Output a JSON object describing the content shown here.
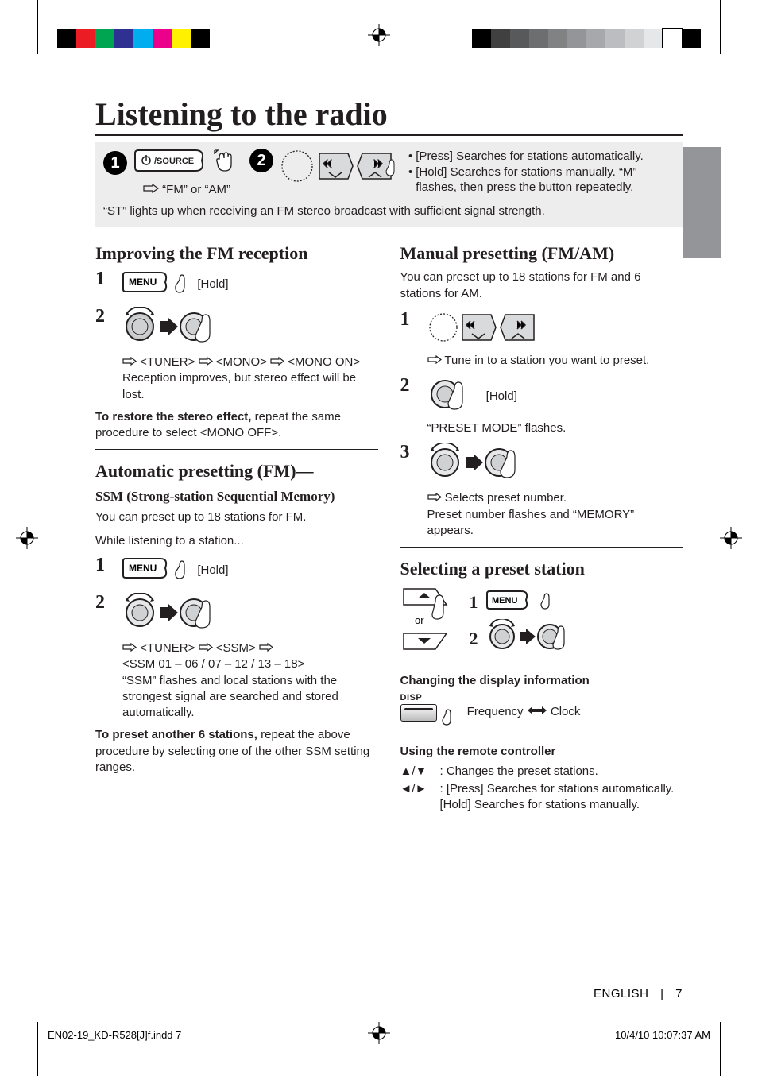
{
  "printer": {
    "left_bars": [
      "#000000",
      "#ec1c24",
      "#00a551",
      "#2e3092",
      "#00adee",
      "#ec008b",
      "#fff100",
      "#000000"
    ],
    "right_bars": [
      "#000000",
      "#404041",
      "#58595b",
      "#6d6e70",
      "#808284",
      "#939598",
      "#a7a8ab",
      "#bbbdc0",
      "#d0d2d3",
      "#e6e7e8",
      "#ffffff",
      "#000000"
    ]
  },
  "title": "Listening to the radio",
  "intro": {
    "step1_num": "1",
    "fmam": "“FM” or “AM”",
    "step2_num": "2",
    "press": "[Press] Searches for stations automatically.",
    "hold": "[Hold] Searches for stations manually. “M” flashes, then press the button repeatedly.",
    "note": "“ST” lights up when receiving an FM stereo broadcast with sufficient signal strength."
  },
  "leftcol": {
    "h_improve": "Improving the FM reception",
    "hold": "[Hold]",
    "menu_path": "<TUNER> ➪ <MONO> ➪ <MONO ON>",
    "recep_note": "Reception improves, but stereo effect will be lost.",
    "restore_b": "To restore the stereo effect,",
    "restore_rest": " repeat the same procedure to select <MONO OFF>.",
    "h_auto": "Automatic presetting (FM)—",
    "ssm_sub": "SSM (Strong-station Sequential Memory)",
    "ssm_intro": "You can preset up to 18 stations for FM.",
    "while": "While listening to a station...",
    "ssm_path_a": "<TUNER> ➪ <SSM> ➪",
    "ssm_path_b": "<SSM 01 – 06 / 07 – 12 / 13 – 18>",
    "ssm_note": "“SSM” flashes and local stations with the strongest signal are searched and stored automatically.",
    "another_b": "To preset another 6 stations,",
    "another_rest": " repeat the above procedure by selecting one of the other SSM setting ranges."
  },
  "rightcol": {
    "h_manual": "Manual presetting (FM/AM)",
    "manual_intro": "You can preset up to 18 stations for FM and 6 stations for AM.",
    "tune": "Tune in to a station you want to preset.",
    "hold": "[Hold]",
    "preset_flash": "“PRESET MODE” flashes.",
    "select_preset": "Selects preset number.",
    "mem_note": "Preset number flashes and “MEMORY” appears.",
    "h_select": "Selecting a preset station",
    "or": "or",
    "n1": "1",
    "n2": "2",
    "chg_disp": "Changing the display information",
    "disp_label": "DISP",
    "freq": "Frequency",
    "clock": "Clock",
    "remote_h": "Using the remote controller",
    "remote_ud": "Changes the preset stations.",
    "remote_lr1": "[Press] Searches for stations automatically.",
    "remote_lr2": "[Hold] Searches for stations manually."
  },
  "footer": {
    "lang": "ENGLISH",
    "page": "7",
    "file": "EN02-19_KD-R528[J]f.indd   7",
    "ts": "10/4/10   10:07:37 AM"
  }
}
